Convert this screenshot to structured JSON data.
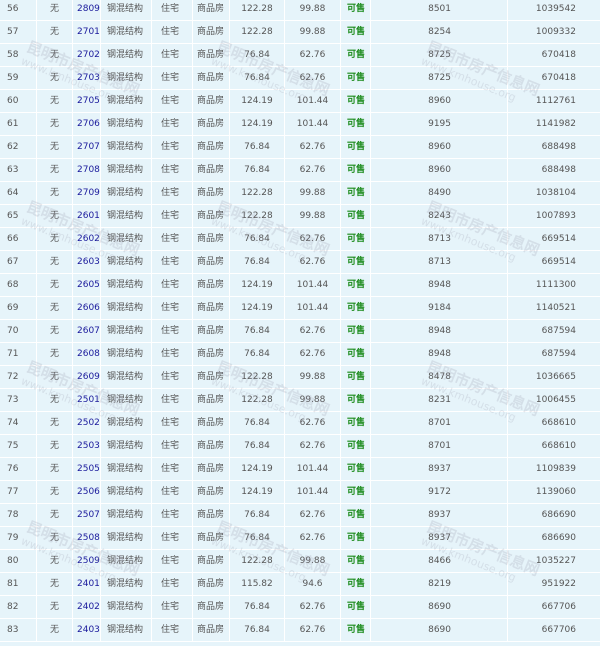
{
  "watermark": {
    "name": "昆明市房产信息网",
    "url": "www.kmhouse.org"
  },
  "colors": {
    "background": "#e6f4fa",
    "room_link": "#1a1a9c",
    "status_available": "#1a8a1a"
  },
  "rows": [
    [
      "56",
      "无",
      "2809",
      "钢混结构",
      "住宅",
      "商品房",
      "122.28",
      "99.88",
      "可售",
      "8501",
      "1039542"
    ],
    [
      "57",
      "无",
      "2701",
      "钢混结构",
      "住宅",
      "商品房",
      "122.28",
      "99.88",
      "可售",
      "8254",
      "1009332"
    ],
    [
      "58",
      "无",
      "2702",
      "钢混结构",
      "住宅",
      "商品房",
      "76.84",
      "62.76",
      "可售",
      "8725",
      "670418"
    ],
    [
      "59",
      "无",
      "2703",
      "钢混结构",
      "住宅",
      "商品房",
      "76.84",
      "62.76",
      "可售",
      "8725",
      "670418"
    ],
    [
      "60",
      "无",
      "2705",
      "钢混结构",
      "住宅",
      "商品房",
      "124.19",
      "101.44",
      "可售",
      "8960",
      "1112761"
    ],
    [
      "61",
      "无",
      "2706",
      "钢混结构",
      "住宅",
      "商品房",
      "124.19",
      "101.44",
      "可售",
      "9195",
      "1141982"
    ],
    [
      "62",
      "无",
      "2707",
      "钢混结构",
      "住宅",
      "商品房",
      "76.84",
      "62.76",
      "可售",
      "8960",
      "688498"
    ],
    [
      "63",
      "无",
      "2708",
      "钢混结构",
      "住宅",
      "商品房",
      "76.84",
      "62.76",
      "可售",
      "8960",
      "688498"
    ],
    [
      "64",
      "无",
      "2709",
      "钢混结构",
      "住宅",
      "商品房",
      "122.28",
      "99.88",
      "可售",
      "8490",
      "1038104"
    ],
    [
      "65",
      "无",
      "2601",
      "钢混结构",
      "住宅",
      "商品房",
      "122.28",
      "99.88",
      "可售",
      "8243",
      "1007893"
    ],
    [
      "66",
      "无",
      "2602",
      "钢混结构",
      "住宅",
      "商品房",
      "76.84",
      "62.76",
      "可售",
      "8713",
      "669514"
    ],
    [
      "67",
      "无",
      "2603",
      "钢混结构",
      "住宅",
      "商品房",
      "76.84",
      "62.76",
      "可售",
      "8713",
      "669514"
    ],
    [
      "68",
      "无",
      "2605",
      "钢混结构",
      "住宅",
      "商品房",
      "124.19",
      "101.44",
      "可售",
      "8948",
      "1111300"
    ],
    [
      "69",
      "无",
      "2606",
      "钢混结构",
      "住宅",
      "商品房",
      "124.19",
      "101.44",
      "可售",
      "9184",
      "1140521"
    ],
    [
      "70",
      "无",
      "2607",
      "钢混结构",
      "住宅",
      "商品房",
      "76.84",
      "62.76",
      "可售",
      "8948",
      "687594"
    ],
    [
      "71",
      "无",
      "2608",
      "钢混结构",
      "住宅",
      "商品房",
      "76.84",
      "62.76",
      "可售",
      "8948",
      "687594"
    ],
    [
      "72",
      "无",
      "2609",
      "钢混结构",
      "住宅",
      "商品房",
      "122.28",
      "99.88",
      "可售",
      "8478",
      "1036665"
    ],
    [
      "73",
      "无",
      "2501",
      "钢混结构",
      "住宅",
      "商品房",
      "122.28",
      "99.88",
      "可售",
      "8231",
      "1006455"
    ],
    [
      "74",
      "无",
      "2502",
      "钢混结构",
      "住宅",
      "商品房",
      "76.84",
      "62.76",
      "可售",
      "8701",
      "668610"
    ],
    [
      "75",
      "无",
      "2503",
      "钢混结构",
      "住宅",
      "商品房",
      "76.84",
      "62.76",
      "可售",
      "8701",
      "668610"
    ],
    [
      "76",
      "无",
      "2505",
      "钢混结构",
      "住宅",
      "商品房",
      "124.19",
      "101.44",
      "可售",
      "8937",
      "1109839"
    ],
    [
      "77",
      "无",
      "2506",
      "钢混结构",
      "住宅",
      "商品房",
      "124.19",
      "101.44",
      "可售",
      "9172",
      "1139060"
    ],
    [
      "78",
      "无",
      "2507",
      "钢混结构",
      "住宅",
      "商品房",
      "76.84",
      "62.76",
      "可售",
      "8937",
      "686690"
    ],
    [
      "79",
      "无",
      "2508",
      "钢混结构",
      "住宅",
      "商品房",
      "76.84",
      "62.76",
      "可售",
      "8937",
      "686690"
    ],
    [
      "80",
      "无",
      "2509",
      "钢混结构",
      "住宅",
      "商品房",
      "122.28",
      "99.88",
      "可售",
      "8466",
      "1035227"
    ],
    [
      "81",
      "无",
      "2401",
      "钢混结构",
      "住宅",
      "商品房",
      "115.82",
      "94.6",
      "可售",
      "8219",
      "951922"
    ],
    [
      "82",
      "无",
      "2402",
      "钢混结构",
      "住宅",
      "商品房",
      "76.84",
      "62.76",
      "可售",
      "8690",
      "667706"
    ],
    [
      "83",
      "无",
      "2403",
      "钢混结构",
      "住宅",
      "商品房",
      "76.84",
      "62.76",
      "可售",
      "8690",
      "667706"
    ]
  ]
}
